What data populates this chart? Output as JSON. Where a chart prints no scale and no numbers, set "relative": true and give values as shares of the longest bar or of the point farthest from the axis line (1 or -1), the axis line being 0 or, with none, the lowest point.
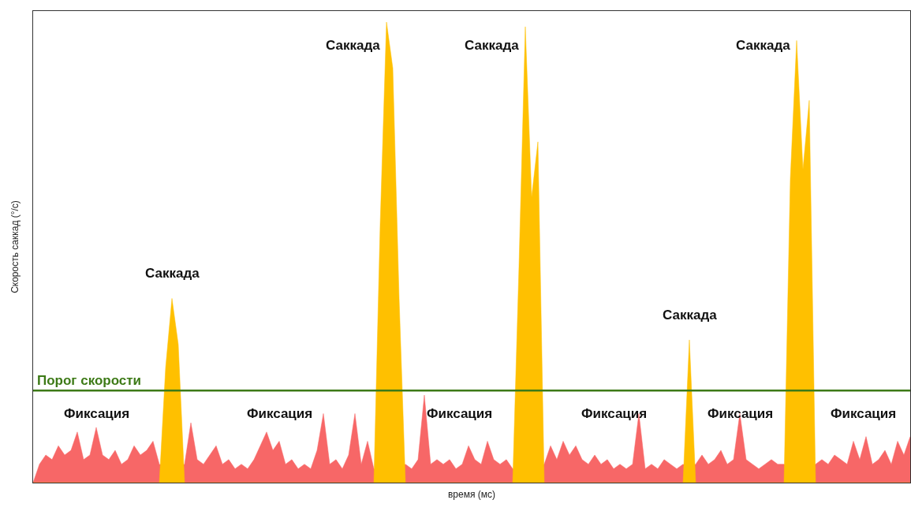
{
  "chart_data": {
    "type": "area",
    "relative": true,
    "xlabel": "время (мс)",
    "ylabel": "Скорость саккад (°/с)",
    "categories": [
      null,
      null,
      null,
      null,
      null,
      null,
      null,
      null,
      null,
      null,
      null,
      null,
      null,
      null,
      null,
      null,
      null,
      null,
      null,
      null,
      null,
      null,
      null,
      null,
      null,
      null,
      null,
      null,
      null,
      null,
      null,
      null,
      null,
      null,
      null,
      null,
      null,
      null,
      null,
      null,
      null,
      null,
      null,
      null,
      null,
      null,
      null,
      null,
      null,
      null,
      null,
      null,
      null,
      null,
      null,
      null,
      null,
      null,
      null,
      null,
      null,
      null,
      null,
      null,
      null,
      null,
      null,
      null,
      null,
      null,
      null,
      null,
      null,
      null,
      null,
      null,
      null,
      null,
      null,
      null,
      null,
      null,
      null,
      null,
      null,
      null,
      null,
      null,
      null,
      null,
      null,
      null,
      null,
      null,
      null,
      null,
      null,
      null,
      null,
      null,
      null,
      null,
      null,
      null,
      null,
      null,
      null,
      null,
      null,
      null,
      null,
      null,
      null,
      null,
      null,
      null,
      null,
      null,
      null,
      null,
      null,
      null,
      null,
      null,
      null,
      null,
      null,
      null,
      null,
      null,
      null,
      null,
      null,
      null,
      null,
      null,
      null,
      null,
      null,
      null
    ],
    "series": [
      {
        "color": "#f76767",
        "values": [
          0,
          0.04,
          0.06,
          0.05,
          0.08,
          0.06,
          0.07,
          0.11,
          0.05,
          0.06,
          0.12,
          0.06,
          0.05,
          0.07,
          0.04,
          0.05,
          0.08,
          0.06,
          0.07,
          0.09,
          0.04,
          null,
          null,
          null,
          0.04,
          0.13,
          0.05,
          0.04,
          0.06,
          0.08,
          0.04,
          0.05,
          0.03,
          0.04,
          0.03,
          0.05,
          0.08,
          0.11,
          0.07,
          0.09,
          0.04,
          0.05,
          0.03,
          0.04,
          0.03,
          0.07,
          0.15,
          0.04,
          0.05,
          0.03,
          0.06,
          0.15,
          0.04,
          0.09,
          0.03,
          null,
          null,
          null,
          null,
          0.04,
          0.03,
          0.05,
          0.19,
          0.04,
          0.05,
          0.04,
          0.05,
          0.03,
          0.04,
          0.08,
          0.05,
          0.04,
          0.09,
          0.05,
          0.04,
          0.05,
          0.03,
          null,
          null,
          null,
          null,
          0.04,
          0.08,
          0.05,
          0.09,
          0.06,
          0.08,
          0.05,
          0.04,
          0.06,
          0.04,
          0.05,
          0.03,
          0.04,
          0.03,
          0.04,
          0.15,
          0.03,
          0.04,
          0.03,
          0.05,
          0.04,
          0.03,
          0.04,
          null,
          0.04,
          0.06,
          0.04,
          0.05,
          0.07,
          0.04,
          0.05,
          0.15,
          0.05,
          0.04,
          0.03,
          0.04,
          0.05,
          0.04,
          0.04,
          null,
          null,
          null,
          null,
          0.04,
          0.05,
          0.04,
          0.06,
          0.05,
          0.04,
          0.09,
          0.05,
          0.1,
          0.04,
          0.05,
          0.07,
          0.04,
          0.09,
          0.06,
          0.1
        ]
      },
      {
        "color": "#ffc000",
        "values": [
          0,
          0,
          0,
          0,
          0,
          0,
          0,
          0,
          0,
          0,
          0,
          0,
          0,
          0,
          0,
          0,
          0,
          0,
          0,
          0,
          0,
          0.25,
          0.4,
          0.3,
          0,
          0,
          0,
          0,
          0,
          0,
          0,
          0,
          0,
          0,
          0,
          0,
          0,
          0,
          0,
          0,
          0,
          0,
          0,
          0,
          0,
          0,
          0,
          0,
          0,
          0,
          0,
          0,
          0,
          0,
          0,
          0.56,
          1,
          0.9,
          0.4,
          0,
          0,
          0,
          0,
          0,
          0,
          0,
          0,
          0,
          0,
          0,
          0,
          0,
          0,
          0,
          0,
          0,
          0,
          0.47,
          0.99,
          0.62,
          0.74,
          0,
          0,
          0,
          0,
          0,
          0,
          0,
          0,
          0,
          0,
          0,
          0,
          0,
          0,
          0,
          0,
          0,
          0,
          0,
          0,
          0,
          0,
          0,
          0.31,
          0,
          0,
          0,
          0,
          0,
          0,
          0,
          0,
          0,
          0,
          0,
          0,
          0,
          0,
          0,
          0.66,
          0.96,
          0.68,
          0.83,
          0,
          0,
          0,
          0,
          0,
          0,
          0,
          0,
          0,
          0,
          0,
          0,
          0,
          0,
          0,
          0
        ]
      }
    ],
    "ref_lines": [
      {
        "axis": "y",
        "value": 0.2,
        "label": "Порог скорости",
        "color": "#3d7a17"
      }
    ],
    "annotations": [
      "Саккада",
      "Саккада",
      "Саккада",
      "Саккада",
      "Саккада",
      "Фиксация",
      "Фиксация",
      "Фиксация",
      "Фиксация",
      "Фиксация",
      "Фиксация"
    ]
  }
}
